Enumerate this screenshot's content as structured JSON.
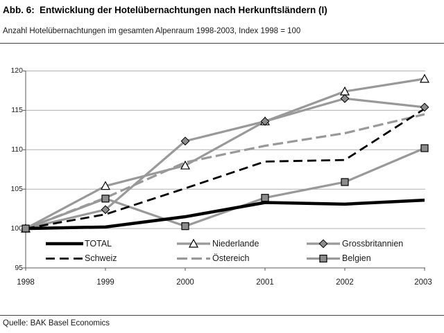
{
  "chart_data": {
    "type": "line",
    "figure_label": "Abb. 6:",
    "title": "Entwicklung der Hotelübernachtungen nach Herkunftsländern (I)",
    "subtitle": "Anzahl Hotelübernachtungen im gesamten Alpenraum 1998-2003, Index 1998 = 100",
    "source": "Quelle: BAK Basel Economics",
    "x": [
      1998,
      1999,
      2000,
      2001,
      2002,
      2003
    ],
    "categories": [
      "1998",
      "1999",
      "2000",
      "2001",
      "2002",
      "2003"
    ],
    "series": [
      {
        "name": "TOTAL",
        "values": [
          100,
          100.2,
          101.5,
          103.3,
          103.1,
          103.6
        ],
        "color": "#000000",
        "style": "solid",
        "width": 4.5,
        "marker": "none",
        "marker_fill": "none"
      },
      {
        "name": "Niederlande",
        "values": [
          100,
          105.4,
          108.0,
          113.6,
          117.4,
          119.0
        ],
        "color": "#999999",
        "style": "solid",
        "width": 3.2,
        "marker": "triangle",
        "marker_fill": "#ffffff"
      },
      {
        "name": "Grossbritannien",
        "values": [
          100,
          102.4,
          111.1,
          113.6,
          116.5,
          115.4
        ],
        "color": "#999999",
        "style": "solid",
        "width": 3.2,
        "marker": "diamond",
        "marker_fill": "#8c8c8c"
      },
      {
        "name": "Schweiz",
        "values": [
          100,
          101.8,
          105.1,
          108.5,
          108.7,
          115.2
        ],
        "color": "#000000",
        "style": "dashed",
        "width": 2.8,
        "marker": "none",
        "marker_fill": "none"
      },
      {
        "name": "Östereich",
        "values": [
          100,
          103.9,
          108.4,
          110.5,
          112.1,
          114.5
        ],
        "color": "#999999",
        "style": "dashed",
        "width": 3.2,
        "marker": "none",
        "marker_fill": "none"
      },
      {
        "name": "Belgien",
        "values": [
          100,
          103.8,
          100.3,
          103.9,
          105.9,
          110.2
        ],
        "color": "#999999",
        "style": "solid",
        "width": 3.2,
        "marker": "square",
        "marker_fill": "#8c8c8c"
      }
    ],
    "ylim": [
      95,
      120
    ],
    "yticks": [
      95,
      100,
      105,
      110,
      115,
      120
    ],
    "xlabel": "",
    "ylabel": "",
    "grid": true,
    "legend_position": "inside-bottom",
    "legend_rows": [
      [
        "TOTAL",
        "Niederlande",
        "Grossbritannien"
      ],
      [
        "Schweiz",
        "Östereich",
        "Belgien"
      ]
    ],
    "colors": {
      "grid": "#b0b0b0",
      "axis": "#595959",
      "gray_series": "#999999",
      "black_series": "#000000"
    }
  }
}
